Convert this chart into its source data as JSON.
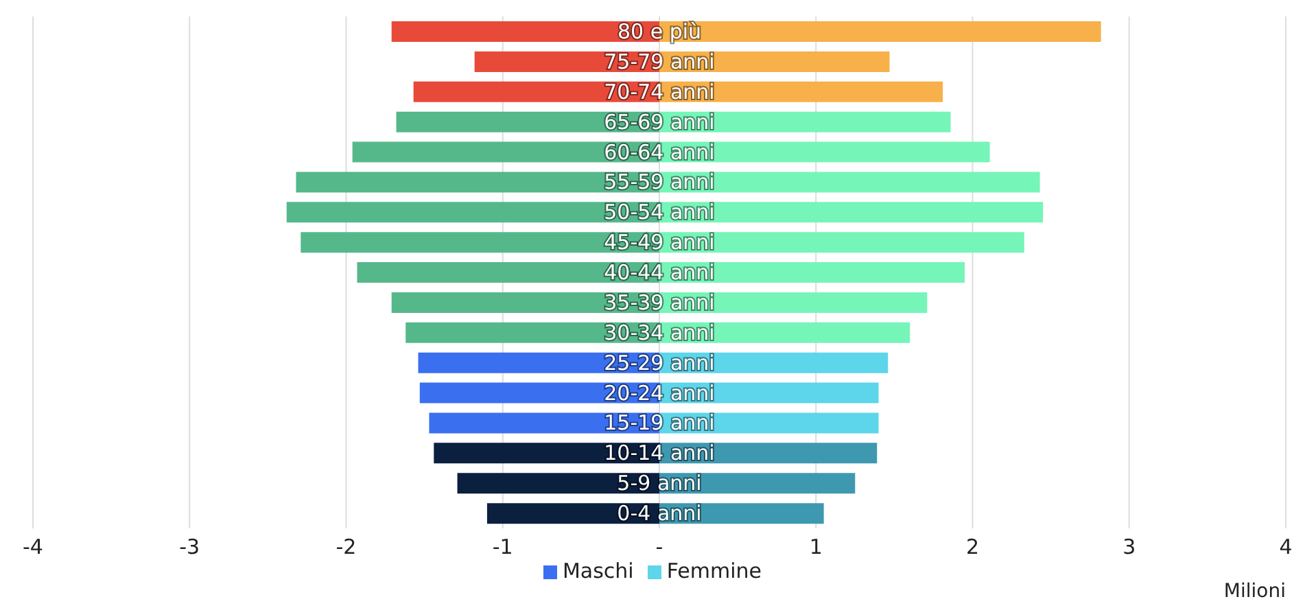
{
  "chart_data": {
    "type": "bar",
    "orientation": "horizontal",
    "categories": [
      "80 e più",
      "75-79 anni",
      "70-74 anni",
      "65-69 anni",
      "60-64 anni",
      "55-59 anni",
      "50-54 anni",
      "45-49 anni",
      "40-44 anni",
      "35-39 anni",
      "30-34 anni",
      "25-29 anni",
      "20-24 anni",
      "15-19 anni",
      "10-14 anni",
      "5-9 anni",
      "0-4 anni"
    ],
    "series": [
      {
        "name": "Maschi",
        "color": "#3a6ff0",
        "values": [
          -1.71,
          -1.18,
          -1.57,
          -1.68,
          -1.96,
          -2.32,
          -2.38,
          -2.29,
          -1.93,
          -1.71,
          -1.62,
          -1.54,
          -1.53,
          -1.47,
          -1.44,
          -1.29,
          -1.1
        ],
        "colors": [
          "#e84a3a",
          "#e84a3a",
          "#e84a3a",
          "#55b88a",
          "#55b88a",
          "#55b88a",
          "#55b88a",
          "#55b88a",
          "#55b88a",
          "#55b88a",
          "#55b88a",
          "#3a6ff0",
          "#3a6ff0",
          "#3a6ff0",
          "#0b1f3f",
          "#0b1f3f",
          "#0b1f3f"
        ]
      },
      {
        "name": "Femmine",
        "color": "#5dd5ea",
        "values": [
          2.82,
          1.47,
          1.81,
          1.86,
          2.11,
          2.43,
          2.45,
          2.33,
          1.95,
          1.71,
          1.6,
          1.46,
          1.4,
          1.4,
          1.39,
          1.25,
          1.05
        ],
        "colors": [
          "#f7b04a",
          "#f7b04a",
          "#f7b04a",
          "#76f5b8",
          "#76f5b8",
          "#76f5b8",
          "#76f5b8",
          "#76f5b8",
          "#76f5b8",
          "#76f5b8",
          "#76f5b8",
          "#5dd5ea",
          "#5dd5ea",
          "#5dd5ea",
          "#3e98b0",
          "#3e98b0",
          "#3e98b0"
        ]
      }
    ],
    "xlim": [
      -4,
      4
    ],
    "xticks": [
      -4,
      -3,
      -2,
      -1,
      {
        "value": 0,
        "label": "-"
      },
      1,
      2,
      3,
      4
    ],
    "xlabel": "Milioni",
    "stacked": true,
    "grid": "x",
    "legend": "bottom"
  }
}
